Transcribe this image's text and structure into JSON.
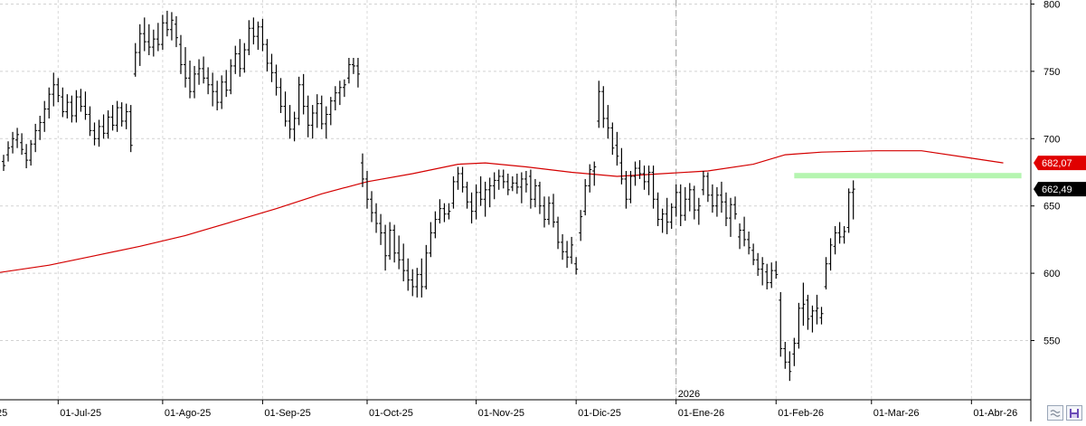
{
  "chart_data": {
    "type": "ohlc",
    "y_axis": {
      "ticks": [
        550,
        600,
        650,
        700,
        750,
        800
      ],
      "labels": [
        "550",
        "600",
        "650",
        "700",
        "750",
        "800"
      ],
      "ylim": [
        506,
        803
      ],
      "grid": true,
      "side": "right"
    },
    "x_axis": {
      "labels": [
        {
          "text": "25",
          "bar": -2
        },
        {
          "text": "01-Jul-25",
          "bar": 12
        },
        {
          "text": "01-Ago-25",
          "bar": 35
        },
        {
          "text": "01-Sep-25",
          "bar": 57
        },
        {
          "text": "01-Oct-25",
          "bar": 80
        },
        {
          "text": "01-Nov-25",
          "bar": 104
        },
        {
          "text": "01-Dic-25",
          "bar": 126
        },
        {
          "text": "01-Ene-26",
          "bar": 148
        },
        {
          "text": "01-Feb-26",
          "bar": 170
        },
        {
          "text": "01-Mar-26",
          "bar": 191
        },
        {
          "text": "01-Abr-26",
          "bar": 213
        }
      ],
      "year_marker": {
        "text": "2026",
        "bar": 148
      },
      "grid": true
    },
    "bars": [
      [
        683,
        688,
        676,
        680
      ],
      [
        688,
        698,
        683,
        693
      ],
      [
        694,
        705,
        689,
        700
      ],
      [
        699,
        708,
        693,
        703
      ],
      [
        697,
        704,
        688,
        692
      ],
      [
        689,
        696,
        678,
        684
      ],
      [
        684,
        699,
        680,
        696
      ],
      [
        696,
        711,
        690,
        706
      ],
      [
        706,
        717,
        699,
        712
      ],
      [
        712,
        728,
        705,
        722
      ],
      [
        722,
        738,
        715,
        733
      ],
      [
        733,
        749,
        724,
        740
      ],
      [
        740,
        745,
        727,
        732
      ],
      [
        731,
        738,
        716,
        720
      ],
      [
        720,
        733,
        715,
        727
      ],
      [
        727,
        732,
        712,
        717
      ],
      [
        717,
        736,
        712,
        731
      ],
      [
        731,
        737,
        720,
        724
      ],
      [
        724,
        735,
        714,
        718
      ],
      [
        718,
        724,
        702,
        706
      ],
      [
        706,
        712,
        695,
        700
      ],
      [
        700,
        714,
        694,
        709
      ],
      [
        709,
        718,
        700,
        704
      ],
      [
        704,
        721,
        700,
        716
      ],
      [
        716,
        725,
        706,
        710
      ],
      [
        710,
        728,
        705,
        723
      ],
      [
        723,
        727,
        709,
        713
      ],
      [
        713,
        726,
        707,
        720
      ],
      [
        720,
        725,
        690,
        695
      ],
      [
        748,
        771,
        746,
        764
      ],
      [
        764,
        785,
        754,
        778
      ],
      [
        778,
        790,
        765,
        772
      ],
      [
        772,
        785,
        762,
        768
      ],
      [
        768,
        781,
        761,
        774
      ],
      [
        774,
        786,
        765,
        770
      ],
      [
        770,
        792,
        766,
        786
      ],
      [
        786,
        795,
        776,
        781
      ],
      [
        781,
        794,
        773,
        788
      ],
      [
        785,
        791,
        768,
        775
      ],
      [
        770,
        777,
        748,
        755
      ],
      [
        755,
        768,
        738,
        745
      ],
      [
        745,
        758,
        730,
        735
      ],
      [
        735,
        754,
        730,
        748
      ],
      [
        748,
        759,
        740,
        752
      ],
      [
        752,
        761,
        741,
        745
      ],
      [
        745,
        753,
        733,
        740
      ],
      [
        740,
        749,
        724,
        735
      ],
      [
        735,
        743,
        721,
        727
      ],
      [
        727,
        747,
        722,
        742
      ],
      [
        742,
        751,
        731,
        736
      ],
      [
        736,
        759,
        733,
        754
      ],
      [
        754,
        769,
        748,
        763
      ],
      [
        763,
        774,
        746,
        752
      ],
      [
        752,
        771,
        749,
        766
      ],
      [
        766,
        788,
        762,
        782
      ],
      [
        782,
        790,
        770,
        776
      ],
      [
        776,
        787,
        766,
        783
      ],
      [
        783,
        789,
        765,
        770
      ],
      [
        770,
        774,
        750,
        756
      ],
      [
        756,
        763,
        742,
        749
      ],
      [
        749,
        755,
        732,
        738
      ],
      [
        738,
        745,
        719,
        724
      ],
      [
        724,
        735,
        709,
        713
      ],
      [
        713,
        725,
        700,
        707
      ],
      [
        707,
        720,
        698,
        715
      ],
      [
        715,
        746,
        710,
        740
      ],
      [
        740,
        748,
        718,
        724
      ],
      [
        724,
        732,
        701,
        710
      ],
      [
        710,
        725,
        700,
        719
      ],
      [
        719,
        733,
        708,
        726
      ],
      [
        726,
        732,
        707,
        711
      ],
      [
        711,
        724,
        700,
        718
      ],
      [
        718,
        731,
        710,
        728
      ],
      [
        728,
        739,
        721,
        734
      ],
      [
        734,
        743,
        725,
        738
      ],
      [
        738,
        744,
        731,
        740
      ],
      [
        745,
        760,
        741,
        755
      ],
      [
        755,
        760,
        748,
        754
      ],
      [
        754,
        760,
        738,
        748
      ],
      [
        682,
        689,
        664,
        670
      ],
      [
        670,
        676,
        648,
        655
      ],
      [
        655,
        661,
        638,
        645
      ],
      [
        645,
        652,
        630,
        637
      ],
      [
        637,
        644,
        621,
        630
      ],
      [
        630,
        636,
        602,
        613
      ],
      [
        613,
        638,
        610,
        632
      ],
      [
        632,
        636,
        608,
        615
      ],
      [
        615,
        628,
        603,
        610
      ],
      [
        610,
        622,
        594,
        602
      ],
      [
        602,
        611,
        587,
        595
      ],
      [
        595,
        603,
        583,
        590
      ],
      [
        590,
        604,
        582,
        599
      ],
      [
        599,
        611,
        582,
        590
      ],
      [
        590,
        621,
        588,
        615
      ],
      [
        615,
        638,
        612,
        630
      ],
      [
        630,
        646,
        626,
        640
      ],
      [
        640,
        655,
        637,
        648
      ],
      [
        648,
        652,
        638,
        644
      ],
      [
        644,
        652,
        640,
        646
      ],
      [
        652,
        672,
        648,
        668
      ],
      [
        668,
        679,
        662,
        674
      ],
      [
        674,
        679,
        660,
        664
      ],
      [
        664,
        668,
        648,
        653
      ],
      [
        653,
        660,
        637,
        646
      ],
      [
        646,
        666,
        640,
        660
      ],
      [
        660,
        672,
        650,
        655
      ],
      [
        655,
        668,
        642,
        662
      ],
      [
        662,
        671,
        649,
        665
      ],
      [
        665,
        675,
        655,
        669
      ],
      [
        669,
        677,
        662,
        672
      ],
      [
        672,
        677,
        663,
        668
      ],
      [
        668,
        674,
        658,
        662
      ],
      [
        664,
        672,
        661,
        667
      ],
      [
        667,
        674,
        659,
        664
      ],
      [
        664,
        675,
        652,
        670
      ],
      [
        670,
        676,
        660,
        666
      ],
      [
        672,
        677,
        648,
        655
      ],
      [
        655,
        670,
        649,
        665
      ],
      [
        665,
        668,
        644,
        650
      ],
      [
        650,
        657,
        634,
        640
      ],
      [
        640,
        657,
        636,
        652
      ],
      [
        652,
        659,
        634,
        638
      ],
      [
        638,
        642,
        618,
        623
      ],
      [
        623,
        629,
        610,
        616
      ],
      [
        616,
        624,
        604,
        612
      ],
      [
        612,
        627,
        607,
        621
      ],
      [
        607,
        612,
        599,
        603
      ],
      [
        630,
        647,
        624,
        642
      ],
      [
        646,
        670,
        643,
        665
      ],
      [
        665,
        681,
        660,
        677
      ],
      [
        676,
        683,
        665,
        679
      ],
      [
        713,
        743,
        708,
        735
      ],
      [
        735,
        739,
        708,
        715
      ],
      [
        715,
        725,
        700,
        708
      ],
      [
        708,
        712,
        688,
        693
      ],
      [
        695,
        705,
        680,
        687
      ],
      [
        682,
        693,
        666,
        670
      ],
      [
        670,
        676,
        648,
        655
      ],
      [
        655,
        676,
        652,
        672
      ],
      [
        672,
        683,
        665,
        678
      ],
      [
        678,
        684,
        670,
        674
      ],
      [
        674,
        680,
        662,
        668
      ],
      [
        668,
        680,
        658,
        675
      ],
      [
        675,
        680,
        648,
        655
      ],
      [
        655,
        660,
        635,
        640
      ],
      [
        640,
        648,
        630,
        644
      ],
      [
        644,
        656,
        629,
        638
      ],
      [
        638,
        652,
        633,
        649
      ],
      [
        649,
        666,
        642,
        660
      ],
      [
        660,
        666,
        635,
        643
      ],
      [
        643,
        664,
        639,
        655
      ],
      [
        655,
        667,
        646,
        662
      ],
      [
        662,
        665,
        640,
        647
      ],
      [
        647,
        656,
        636,
        650
      ],
      [
        662,
        676,
        658,
        672
      ],
      [
        672,
        675,
        653,
        658
      ],
      [
        658,
        666,
        645,
        650
      ],
      [
        650,
        664,
        642,
        658
      ],
      [
        658,
        668,
        645,
        653
      ],
      [
        653,
        660,
        635,
        641
      ],
      [
        641,
        656,
        627,
        651
      ],
      [
        651,
        657,
        640,
        644
      ],
      [
        627,
        637,
        618,
        632
      ],
      [
        632,
        642,
        620,
        625
      ],
      [
        625,
        631,
        614,
        619
      ],
      [
        617,
        622,
        606,
        610
      ],
      [
        610,
        615,
        598,
        603
      ],
      [
        603,
        612,
        591,
        607
      ],
      [
        601,
        607,
        588,
        593
      ],
      [
        593,
        608,
        589,
        602
      ],
      [
        602,
        609,
        596,
        599
      ],
      [
        580,
        586,
        538,
        544
      ],
      [
        544,
        549,
        529,
        534
      ],
      [
        534,
        542,
        520,
        527
      ],
      [
        540,
        552,
        531,
        548
      ],
      [
        548,
        578,
        544,
        574
      ],
      [
        574,
        593,
        561,
        577
      ],
      [
        580,
        584,
        558,
        566
      ],
      [
        568,
        576,
        556,
        572
      ],
      [
        572,
        584,
        562,
        574
      ],
      [
        567,
        575,
        562,
        570
      ],
      [
        590,
        612,
        588,
        607
      ],
      [
        607,
        626,
        602,
        621
      ],
      [
        620,
        635,
        614,
        630
      ],
      [
        630,
        638,
        622,
        627
      ],
      [
        627,
        635,
        622,
        631
      ],
      [
        634,
        663,
        630,
        660
      ],
      [
        660,
        669,
        640,
        662.49
      ]
    ],
    "moving_average": {
      "color": "#d40000",
      "points": [
        [
          -2,
          600
        ],
        [
          10,
          606
        ],
        [
          20,
          613
        ],
        [
          30,
          620
        ],
        [
          40,
          628
        ],
        [
          50,
          638
        ],
        [
          60,
          648
        ],
        [
          70,
          659
        ],
        [
          80,
          668
        ],
        [
          90,
          674
        ],
        [
          100,
          681
        ],
        [
          106,
          682
        ],
        [
          115,
          679
        ],
        [
          125,
          675
        ],
        [
          135,
          672
        ],
        [
          145,
          674
        ],
        [
          155,
          676
        ],
        [
          165,
          681
        ],
        [
          172,
          688
        ],
        [
          180,
          690
        ],
        [
          192,
          691
        ],
        [
          202,
          691
        ],
        [
          212,
          686
        ],
        [
          220,
          682
        ]
      ],
      "label": "682,07",
      "label_color": "#e00000"
    },
    "last_price": {
      "label": "662,49",
      "color": "#000000",
      "value": 662.49
    },
    "highlight": {
      "from_bar": 174,
      "to_bar": 224,
      "value": 672.5,
      "color": "#b5f5b0"
    }
  },
  "toolbar": {
    "buttons": [
      {
        "name": "zoom-fit-button",
        "icon": "≈"
      },
      {
        "name": "save-button",
        "icon": "save-icon"
      }
    ]
  }
}
